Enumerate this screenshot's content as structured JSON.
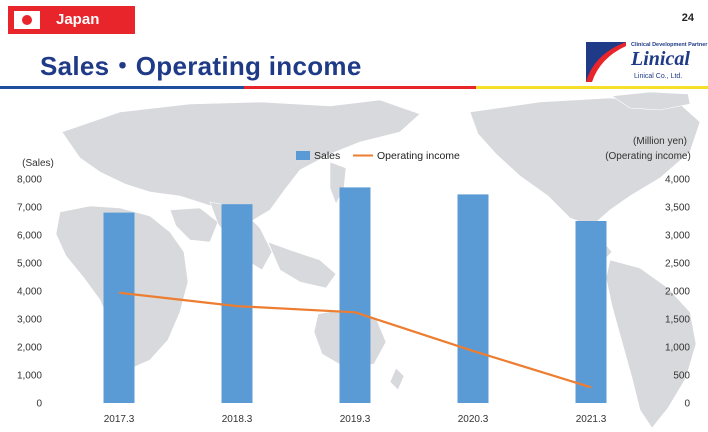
{
  "header": {
    "country": "Japan",
    "page_number": "24",
    "title": "Sales・Operating income"
  },
  "logo": {
    "tagline": "Clinical Development Partner",
    "name": "Linical",
    "company": "Linical Co., Ltd."
  },
  "colors": {
    "accent_red": "#e8252a",
    "title_blue": "#1f3a86",
    "bar_blue": "#5b9bd5",
    "line_orange": "#ed7d31",
    "rule_yellow": "#f5df2a"
  },
  "chart_data": {
    "type": "bar+line",
    "categories": [
      "2017.3",
      "2018.3",
      "2019.3",
      "2020.3",
      "2021.3"
    ],
    "series": [
      {
        "name": "Sales",
        "type": "bar",
        "axis": "left",
        "values": [
          6800,
          7100,
          7700,
          7450,
          6500
        ]
      },
      {
        "name": "Operating income",
        "type": "line",
        "axis": "right",
        "values": [
          1970,
          1730,
          1620,
          930,
          280
        ]
      }
    ],
    "left_axis": {
      "label": "(Sales)",
      "ylim": [
        0,
        8000
      ],
      "ticks": [
        "0",
        "1,000",
        "2,000",
        "3,000",
        "4,000",
        "5,000",
        "6,000",
        "7,000",
        "8,000"
      ]
    },
    "right_axis": {
      "unit_label": "(Million yen)",
      "label": "(Operating income)",
      "ylim": [
        0,
        4000
      ],
      "ticks": [
        "0",
        "500",
        "1,000",
        "1,500",
        "2,000",
        "2,500",
        "3,000",
        "3,500",
        "4,000"
      ]
    },
    "legend_position": "top-center",
    "grid": false
  }
}
